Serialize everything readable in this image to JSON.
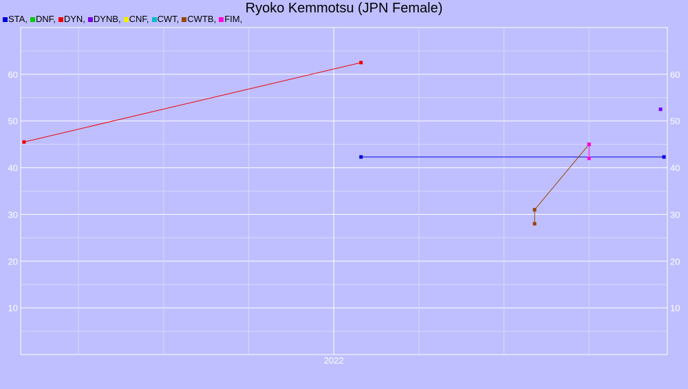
{
  "chart_data": {
    "type": "line",
    "title": "Ryoko Kemmotsu (JPN Female)",
    "xlabel": "",
    "ylabel": "",
    "x_tick_labels": [
      "2022"
    ],
    "x_range": [
      2021.08,
      2022.98
    ],
    "y_range": [
      0,
      70
    ],
    "y_ticks": [
      10,
      20,
      30,
      40,
      50,
      60
    ],
    "grid": true,
    "legend_position": "top-left",
    "series": [
      {
        "name": "STA",
        "color": "#0000dd",
        "points": [
          {
            "x": 2022.08,
            "y": 42.3
          },
          {
            "x": 2022.97,
            "y": 42.3
          }
        ]
      },
      {
        "name": "DNF",
        "color": "#00cc00",
        "points": []
      },
      {
        "name": "DYN",
        "color": "#ee0000",
        "points": [
          {
            "x": 2021.09,
            "y": 45.5
          },
          {
            "x": 2022.08,
            "y": 62.5
          }
        ]
      },
      {
        "name": "DYNB",
        "color": "#7a00ee",
        "points": [
          {
            "x": 2022.96,
            "y": 52.5
          }
        ]
      },
      {
        "name": "CNF",
        "color": "#eeee00",
        "points": []
      },
      {
        "name": "CWT",
        "color": "#00bbcc",
        "points": []
      },
      {
        "name": "CWTB",
        "color": "#994400",
        "points": [
          {
            "x": 2022.59,
            "y": 28
          },
          {
            "x": 2022.59,
            "y": 31
          },
          {
            "x": 2022.75,
            "y": 45
          }
        ]
      },
      {
        "name": "FIM",
        "color": "#ff00dd",
        "points": [
          {
            "x": 2022.75,
            "y": 42
          },
          {
            "x": 2022.75,
            "y": 45
          }
        ]
      }
    ]
  }
}
